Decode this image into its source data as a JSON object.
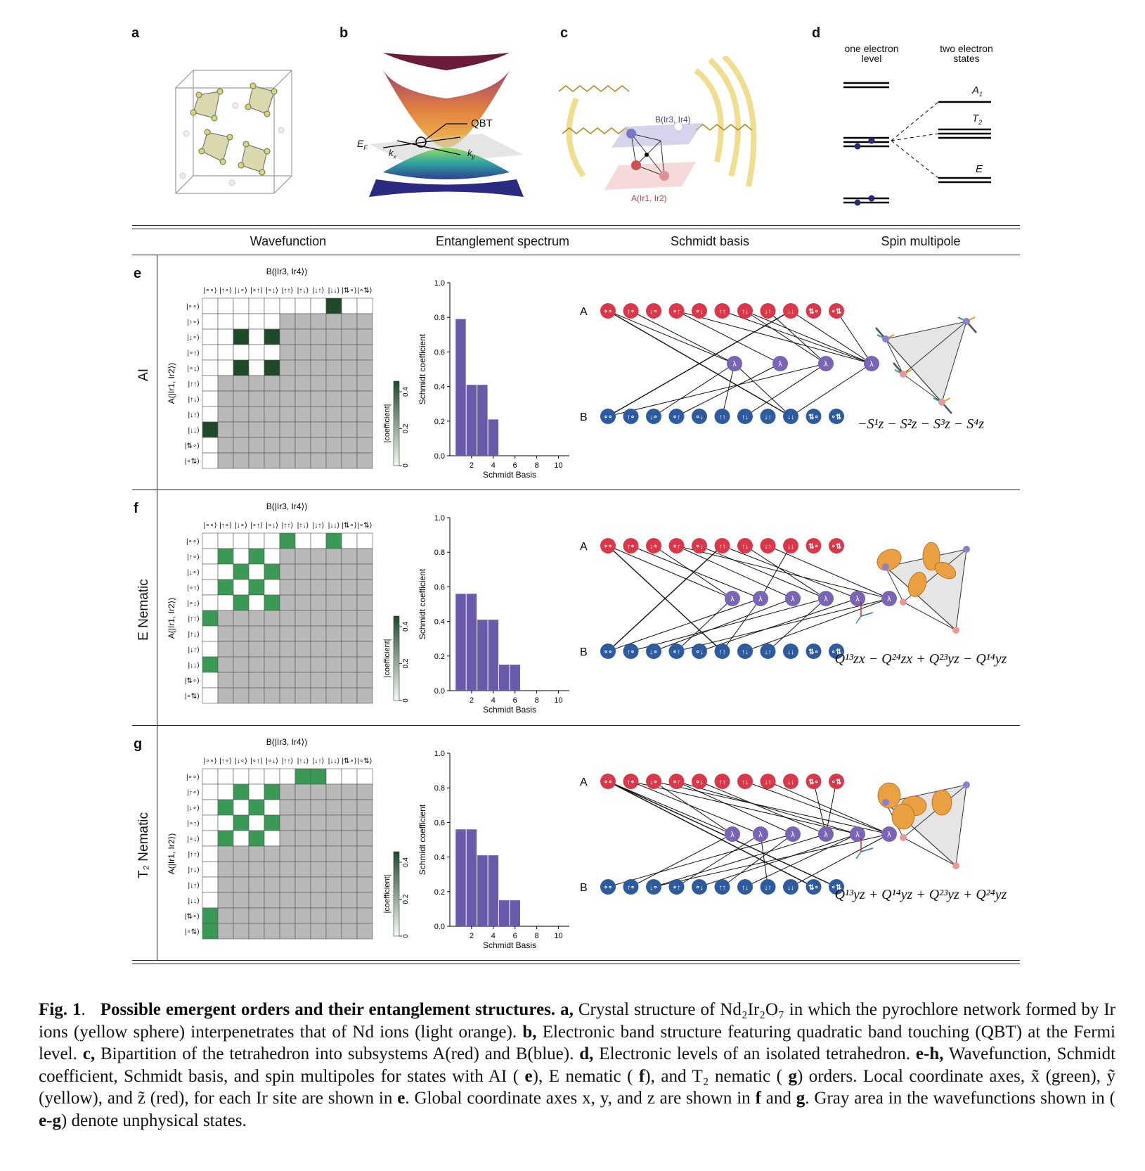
{
  "panel_letters": [
    "a",
    "b",
    "c",
    "d"
  ],
  "panel_b": {
    "qbt": "QBT",
    "ef": "E",
    "ef_sub": "F",
    "kx": "k",
    "kx_sub": "x",
    "ky": "k",
    "ky_sub": "y"
  },
  "panel_c": {
    "b_label": "B(Ir3, Ir4)",
    "a_label": "A(Ir1, Ir2)"
  },
  "panel_d": {
    "one": "one electron",
    "one2": "level",
    "two": "two electron",
    "two2": "states",
    "a1": "A",
    "a1_sub": "1",
    "t2": "T",
    "t2_sub": "2",
    "e": "E"
  },
  "columns": [
    "Wavefunction",
    "Entanglement spectrum",
    "Schmidt basis",
    "Spin multipole"
  ],
  "rows": [
    {
      "letter": "e",
      "name": "AI",
      "formula": "−S¹z − S²z − S³z − S⁴z"
    },
    {
      "letter": "f",
      "name": "E Nematic",
      "formula": "Q¹³zx − Q²⁴zx + Q²³yz − Q¹⁴yz"
    },
    {
      "letter": "g",
      "name": "T₂ Nematic",
      "formula": "Q¹³yz + Q¹⁴yz + Q²³yz + Q²⁴yz"
    }
  ],
  "wavefunction": {
    "b_title": "B(|Ir3, Ir4⟩)",
    "a_title": "A(|Ir1, Ir2⟩)",
    "states": [
      "|∘∘⟩",
      "|↑∘⟩",
      "|↓∘⟩",
      "|∘↑⟩",
      "|∘↓⟩",
      "|↑↑⟩",
      "|↑↓⟩",
      "|↓↑⟩",
      "|↓↓⟩",
      "|⇅∘⟩",
      "|∘⇅⟩"
    ],
    "colorbar_label": "|coefficient|",
    "colorbar_ticks": [
      "0",
      "0.2",
      "0.4"
    ]
  },
  "spectrum": {
    "ylabel": "Schmidt coefficient",
    "xlabel": "Schmidt Basis",
    "yticks": [
      "0.0",
      "0.2",
      "0.4",
      "0.6",
      "0.8",
      "1.0"
    ],
    "xticks": [
      "2",
      "4",
      "6",
      "8",
      "10"
    ]
  },
  "chart_data": [
    {
      "type": "bar",
      "title": "",
      "xlabel": "Schmidt Basis",
      "ylabel": "Schmidt coefficient",
      "x": [
        1,
        2,
        3,
        4
      ],
      "values": [
        0.79,
        0.41,
        0.41,
        0.21
      ],
      "ylim": [
        0,
        1.0
      ],
      "xlim": [
        0,
        11
      ]
    },
    {
      "type": "bar",
      "title": "",
      "xlabel": "Schmidt Basis",
      "ylabel": "Schmidt coefficient",
      "x": [
        1,
        2,
        3,
        4,
        5,
        6
      ],
      "values": [
        0.56,
        0.56,
        0.41,
        0.41,
        0.15,
        0.15
      ],
      "ylim": [
        0,
        1.0
      ],
      "xlim": [
        0,
        11
      ]
    },
    {
      "type": "bar",
      "title": "",
      "xlabel": "Schmidt Basis",
      "ylabel": "Schmidt coefficient",
      "x": [
        1,
        2,
        3,
        4,
        5,
        6
      ],
      "values": [
        0.56,
        0.56,
        0.41,
        0.41,
        0.15,
        0.15
      ],
      "ylim": [
        0,
        1.0
      ],
      "xlim": [
        0,
        11
      ]
    }
  ],
  "schmidt": {
    "a": "A",
    "b": "B",
    "node_labels": [
      "∘∘",
      "↑∘",
      "↓∘",
      "∘↑",
      "∘↓",
      "↑↑",
      "↑↓",
      "↓↑",
      "↓↓",
      "⇅∘",
      "∘⇅"
    ],
    "lambda": "λ"
  },
  "caption": {
    "fig": "Fig. 1",
    "title": "Possible emergent orders and their entanglement structures.",
    "body": [
      {
        "b": "a,",
        "t": " Crystal structure of Nd₂Ir₂O₇ in which the pyrochlore network formed by Ir ions (yellow sphere) interpenetrates that of Nd ions (light orange). "
      },
      {
        "b": "b,",
        "t": " Electronic band structure featuring quadratic band touching (QBT) at the Fermi level. "
      },
      {
        "b": "c,",
        "t": " Bipartition of the tetrahedron into subsystems A(red) and B(blue). "
      },
      {
        "b": "d,",
        "t": " Electronic levels of an isolated tetrahedron. "
      },
      {
        "b": "e-h,",
        "t": " Wavefunction, Schmidt coefficient, Schmidt basis, and spin multipoles for states with AI ("
      },
      {
        "b": "e",
        "t": "), E nematic ("
      },
      {
        "b": "f",
        "t": "), and T₂ nematic ("
      },
      {
        "b": "g",
        "t": ") orders. Local coordinate axes, x̃ (green), ỹ (yellow), and z̃ (red), for each Ir site are shown in "
      },
      {
        "b": "e",
        "t": ". Global coordinate axes x, y, and z are shown in "
      },
      {
        "b": "f",
        "t": " and "
      },
      {
        "b": "g",
        "t": ". Gray area in the wavefunctions shown in ("
      },
      {
        "b": "e-g",
        "t": ") denote unphysical states."
      }
    ]
  }
}
